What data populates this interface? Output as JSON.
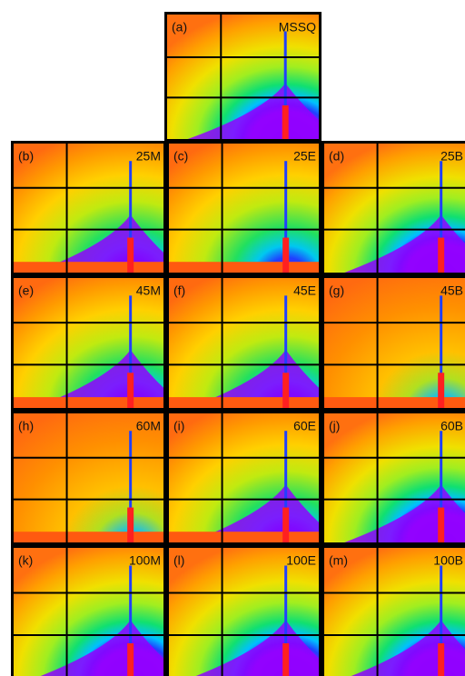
{
  "panels": [
    {
      "letter": "(a)",
      "label": "MSSQ"
    },
    {
      "letter": "(b)",
      "label": "25M"
    },
    {
      "letter": "(c)",
      "label": "25E"
    },
    {
      "letter": "(d)",
      "label": "25B"
    },
    {
      "letter": "(e)",
      "label": "45M"
    },
    {
      "letter": "(f)",
      "label": "45E"
    },
    {
      "letter": "(g)",
      "label": "45B"
    },
    {
      "letter": "(h)",
      "label": "60M"
    },
    {
      "letter": "(i)",
      "label": "60E"
    },
    {
      "letter": "(j)",
      "label": "60B"
    },
    {
      "letter": "(k)",
      "label": "100M"
    },
    {
      "letter": "(l)",
      "label": "100E"
    },
    {
      "letter": "(m)",
      "label": "100B"
    }
  ]
}
